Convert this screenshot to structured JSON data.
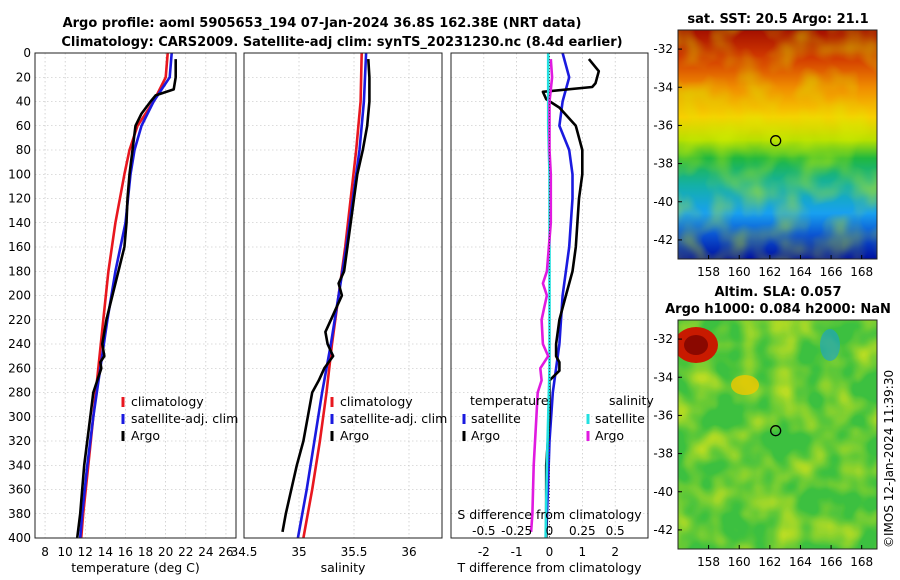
{
  "header": {
    "title_line1": "Argo profile: aoml 5905653_194 07-Jan-2024 36.8S 162.38E (NRT data)",
    "title_line2": "Climatology: CARS2009. Satellite-adj clim: synTS_20231230.nc (8.4d earlier)"
  },
  "chart_data": [
    {
      "type": "line",
      "name": "temperature-profile",
      "xlabel": "temperature (deg C)",
      "ylabel": "",
      "xlim": [
        7,
        27
      ],
      "ylim": [
        400,
        0
      ],
      "xticks": [
        8,
        10,
        12,
        14,
        16,
        18,
        20,
        22,
        24,
        26
      ],
      "yticks": [
        0,
        20,
        40,
        60,
        80,
        100,
        120,
        140,
        160,
        180,
        200,
        220,
        240,
        260,
        280,
        300,
        320,
        340,
        360,
        380,
        400
      ],
      "grid": true,
      "legend": "lower-right",
      "series": [
        {
          "name": "climatology",
          "color": "#e8171f",
          "depth": [
            0,
            20,
            40,
            60,
            80,
            100,
            140,
            180,
            220,
            260,
            300,
            340,
            380,
            400
          ],
          "values": [
            20.2,
            20.0,
            18.8,
            17.2,
            16.4,
            15.9,
            15.0,
            14.3,
            13.8,
            13.3,
            12.8,
            12.3,
            11.8,
            11.6
          ]
        },
        {
          "name": "satellite-adj. clim",
          "color": "#1a1adf",
          "depth": [
            0,
            20,
            30,
            40,
            60,
            80,
            100,
            140,
            180,
            220,
            260,
            300,
            340,
            380,
            400
          ],
          "values": [
            20.6,
            20.4,
            19.6,
            18.8,
            17.6,
            16.9,
            16.5,
            16.0,
            15.0,
            14.2,
            13.5,
            12.8,
            12.2,
            11.7,
            11.5
          ]
        },
        {
          "name": "Argo",
          "color": "#000000",
          "depth": [
            5,
            10,
            20,
            30,
            35,
            40,
            50,
            60,
            80,
            100,
            120,
            140,
            160,
            180,
            200,
            220,
            240,
            250,
            255,
            260,
            270,
            280,
            300,
            340,
            380,
            400
          ],
          "values": [
            21.0,
            21.0,
            21.0,
            20.8,
            19.0,
            18.5,
            17.6,
            17.0,
            16.7,
            16.4,
            16.2,
            16.1,
            15.9,
            15.3,
            14.7,
            14.1,
            13.7,
            13.9,
            13.5,
            13.6,
            13.2,
            12.8,
            12.5,
            11.9,
            11.5,
            11.2
          ]
        }
      ]
    },
    {
      "type": "line",
      "name": "salinity-profile",
      "xlabel": "salinity",
      "ylabel": "",
      "xlim": [
        34.5,
        36.3
      ],
      "ylim": [
        400,
        0
      ],
      "xticks": [
        34.5,
        35,
        35.5,
        36
      ],
      "grid": true,
      "legend": "lower-right",
      "series": [
        {
          "name": "climatology",
          "color": "#e8171f",
          "depth": [
            0,
            40,
            80,
            120,
            160,
            200,
            240,
            280,
            320,
            360,
            400
          ],
          "values": [
            35.57,
            35.56,
            35.52,
            35.47,
            35.42,
            35.36,
            35.3,
            35.25,
            35.19,
            35.12,
            35.04
          ]
        },
        {
          "name": "satellite-adj. clim",
          "color": "#1a1adf",
          "depth": [
            0,
            40,
            80,
            120,
            160,
            200,
            240,
            280,
            320,
            360,
            400
          ],
          "values": [
            35.61,
            35.59,
            35.55,
            35.49,
            35.43,
            35.36,
            35.29,
            35.21,
            35.14,
            35.07,
            34.99
          ]
        },
        {
          "name": "Argo",
          "color": "#000000",
          "depth": [
            5,
            20,
            40,
            60,
            80,
            100,
            120,
            140,
            160,
            180,
            190,
            200,
            210,
            220,
            230,
            240,
            250,
            260,
            270,
            280,
            300,
            320,
            340,
            360,
            380,
            395
          ],
          "values": [
            35.63,
            35.64,
            35.64,
            35.62,
            35.58,
            35.53,
            35.5,
            35.47,
            35.44,
            35.41,
            35.36,
            35.39,
            35.34,
            35.29,
            35.24,
            35.26,
            35.31,
            35.23,
            35.18,
            35.12,
            35.08,
            35.04,
            34.98,
            34.93,
            34.88,
            34.85
          ]
        }
      ]
    },
    {
      "type": "line",
      "name": "difference-from-climatology",
      "xlabel": "T difference from climatology",
      "top_label": "S difference from climatology",
      "xlim": [
        -3,
        3
      ],
      "s_xlim": [
        -0.75,
        0.75
      ],
      "ylim": [
        400,
        0
      ],
      "xticks": [
        -2,
        -1,
        0,
        1,
        2
      ],
      "s_xticks": [
        -0.5,
        -0.25,
        0,
        0.25,
        0.5
      ],
      "grid": true,
      "legend": "lower-center",
      "legend_groups": {
        "temperature": "temperature",
        "salinity": "salinity"
      },
      "series": [
        {
          "name": "satellite",
          "group": "temperature",
          "color": "#1a1adf",
          "depth": [
            0,
            20,
            40,
            60,
            80,
            100,
            120,
            160,
            200,
            240,
            260,
            280,
            320,
            360,
            400
          ],
          "values": [
            0.4,
            0.6,
            0.4,
            0.3,
            0.6,
            0.7,
            0.7,
            0.6,
            0.4,
            0.3,
            0.2,
            0.1,
            0.0,
            -0.05,
            -0.1
          ]
        },
        {
          "name": "Argo",
          "group": "temperature",
          "color": "#000000",
          "depth": [
            5,
            15,
            25,
            28,
            32,
            38,
            45,
            60,
            80,
            100,
            120,
            160,
            180,
            200,
            220,
            240,
            250,
            255,
            262,
            270,
            275,
            280,
            300,
            340,
            380,
            400
          ],
          "values": [
            1.2,
            1.5,
            1.4,
            1.3,
            -0.2,
            -0.1,
            0.3,
            0.8,
            1.0,
            1.0,
            0.9,
            0.8,
            0.7,
            0.5,
            0.3,
            0.2,
            0.2,
            0.3,
            0.3,
            0.0,
            0.0,
            0.0,
            0.0,
            -0.1,
            -0.1,
            -0.1
          ]
        },
        {
          "name": "satellite",
          "group": "salinity",
          "color": "#22e0e0",
          "depth": [
            0,
            20,
            60,
            100,
            160,
            200,
            260,
            300,
            340,
            400
          ],
          "values": [
            -0.01,
            -0.01,
            -0.01,
            0.0,
            0.0,
            0.0,
            0.0,
            -0.01,
            -0.02,
            -0.03
          ]
        },
        {
          "name": "Argo",
          "group": "salinity",
          "color": "#e01ae0",
          "depth": [
            5,
            20,
            40,
            60,
            80,
            100,
            140,
            180,
            190,
            200,
            210,
            220,
            240,
            250,
            260,
            270,
            280,
            300,
            340,
            380,
            395
          ],
          "values": [
            0.01,
            0.02,
            0.0,
            0.0,
            0.0,
            0.01,
            0.01,
            -0.02,
            -0.05,
            -0.02,
            -0.04,
            -0.06,
            -0.05,
            -0.01,
            -0.07,
            -0.06,
            -0.09,
            -0.1,
            -0.12,
            -0.13,
            -0.14
          ]
        }
      ]
    },
    {
      "type": "heatmap",
      "name": "satellite-sst-map",
      "title": "sat. SST: 20.5 Argo: 21.1",
      "xlim": [
        156,
        169
      ],
      "ylim": [
        -43,
        -31
      ],
      "xticks": [
        158,
        160,
        162,
        164,
        166,
        168
      ],
      "yticks": [
        -32,
        -34,
        -36,
        -38,
        -40,
        -42
      ],
      "marker": {
        "lon": 162.38,
        "lat": -36.8
      }
    },
    {
      "type": "heatmap",
      "name": "altimetry-sla-map",
      "title": "Altim. SLA: 0.057",
      "title2": "Argo h1000: 0.084 h2000: NaN",
      "xlim": [
        156,
        169
      ],
      "ylim": [
        -43,
        -31
      ],
      "xticks": [
        158,
        160,
        162,
        164,
        166,
        168
      ],
      "yticks": [
        -32,
        -34,
        -36,
        -38,
        -40,
        -42
      ],
      "marker": {
        "lon": 162.38,
        "lat": -36.8
      }
    }
  ],
  "credit": "©IMOS 12-Jan-2024 11:39:30",
  "colors": {
    "climatology": "#e8171f",
    "satellite": "#1a1adf",
    "argo": "#000000",
    "sal_satellite": "#22e0e0",
    "sal_argo": "#e01ae0"
  }
}
